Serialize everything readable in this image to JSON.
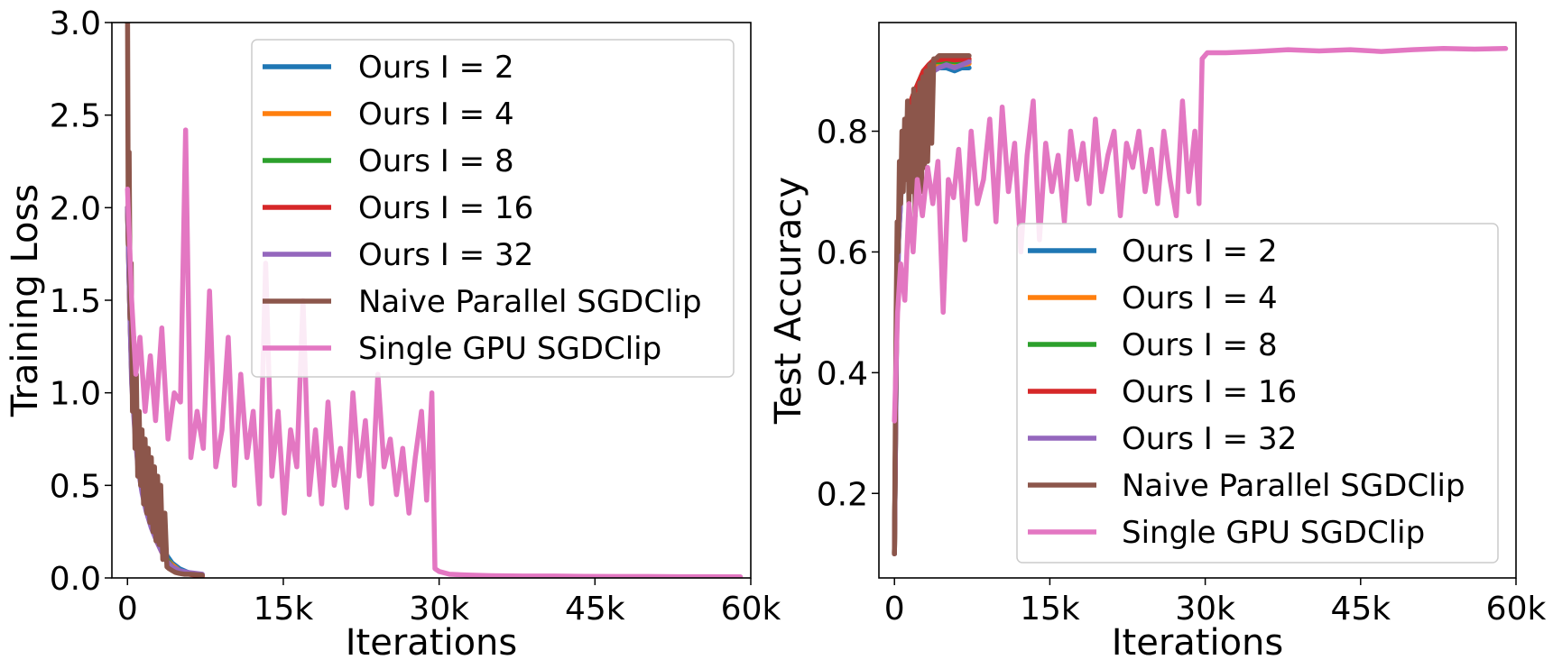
{
  "chart_data": [
    {
      "type": "line",
      "xlabel": "Iterations",
      "ylabel": "Training Loss",
      "xlim": [
        -1500,
        60000
      ],
      "ylim": [
        0,
        3.0
      ],
      "xticks": [
        0,
        15000,
        30000,
        45000,
        60000
      ],
      "xtick_labels": [
        "0",
        "15k",
        "30k",
        "45k",
        "60k"
      ],
      "yticks": [
        0,
        0.5,
        1.0,
        1.5,
        2.0,
        2.5,
        3.0
      ],
      "ytick_labels": [
        "0.0",
        "0.5",
        "1.0",
        "1.5",
        "2.0",
        "2.5",
        "3.0"
      ],
      "legend_position": "top-right",
      "series": [
        {
          "name": "Ours I = 2",
          "color": "#1f77b4",
          "x": [
            0,
            200,
            400,
            700,
            1000,
            1400,
            1800,
            2300,
            2800,
            3300,
            3800,
            4300,
            5000,
            5800,
            6500,
            7200
          ],
          "y": [
            2.0,
            1.6,
            1.2,
            0.9,
            0.7,
            0.55,
            0.45,
            0.35,
            0.25,
            0.18,
            0.12,
            0.08,
            0.05,
            0.03,
            0.02,
            0.015
          ]
        },
        {
          "name": "Ours I = 4",
          "color": "#ff7f0e",
          "x": [
            0,
            200,
            400,
            700,
            1000,
            1400,
            1800,
            2300,
            2800,
            3300,
            3800,
            4300,
            5000,
            5800,
            6500,
            7200
          ],
          "y": [
            2.0,
            1.55,
            1.15,
            0.88,
            0.68,
            0.52,
            0.42,
            0.32,
            0.23,
            0.16,
            0.1,
            0.07,
            0.04,
            0.025,
            0.018,
            0.012
          ]
        },
        {
          "name": "Ours I = 8",
          "color": "#2ca02c",
          "x": [
            0,
            200,
            400,
            700,
            1000,
            1400,
            1800,
            2300,
            2800,
            3300,
            3800,
            4300,
            5000,
            5800,
            6500,
            7200
          ],
          "y": [
            2.0,
            1.5,
            1.1,
            0.85,
            0.65,
            0.5,
            0.4,
            0.3,
            0.22,
            0.15,
            0.1,
            0.06,
            0.04,
            0.025,
            0.018,
            0.012
          ]
        },
        {
          "name": "Ours I = 16",
          "color": "#d62728",
          "x": [
            0,
            200,
            400,
            700,
            1000,
            1400,
            1800,
            2300,
            2800,
            3300,
            3800,
            4300,
            5000,
            5800,
            6500,
            7200
          ],
          "y": [
            2.0,
            1.5,
            1.1,
            0.82,
            0.62,
            0.48,
            0.38,
            0.28,
            0.2,
            0.14,
            0.09,
            0.06,
            0.035,
            0.022,
            0.015,
            0.01
          ]
        },
        {
          "name": "Ours I = 32",
          "color": "#9467bd",
          "x": [
            0,
            200,
            400,
            700,
            1000,
            1400,
            1800,
            2300,
            2800,
            3300,
            3800,
            4300,
            5000,
            5800,
            6500,
            7200
          ],
          "y": [
            2.0,
            1.5,
            1.05,
            0.8,
            0.6,
            0.46,
            0.36,
            0.27,
            0.2,
            0.14,
            0.09,
            0.06,
            0.04,
            0.03,
            0.025,
            0.02
          ]
        },
        {
          "name": "Naive Parallel SGDClip",
          "color": "#8c564b",
          "x": [
            0,
            80,
            160,
            260,
            360,
            480,
            600,
            720,
            850,
            980,
            1120,
            1260,
            1400,
            1550,
            1700,
            1850,
            2000,
            2150,
            2300,
            2450,
            2600,
            2750,
            2900,
            3050,
            3200,
            3400,
            3600,
            3800,
            4000,
            4300,
            4600,
            5000,
            5500,
            6000,
            6500,
            7200
          ],
          "y": [
            3.1,
            1.8,
            2.3,
            1.4,
            1.7,
            0.9,
            1.3,
            0.7,
            1.1,
            0.55,
            0.9,
            0.5,
            0.8,
            0.4,
            0.75,
            0.35,
            0.7,
            0.3,
            0.65,
            0.25,
            0.6,
            0.2,
            0.55,
            0.18,
            0.5,
            0.1,
            0.35,
            0.06,
            0.05,
            0.04,
            0.03,
            0.025,
            0.02,
            0.02,
            0.018,
            0.015
          ]
        },
        {
          "name": "Single GPU SGDClip",
          "color": "#e377c2",
          "x": [
            0,
            400,
            800,
            1200,
            1700,
            2200,
            2700,
            3300,
            3900,
            4500,
            5100,
            5600,
            6100,
            6700,
            7300,
            7900,
            8500,
            9100,
            9700,
            10300,
            10900,
            11500,
            12100,
            12700,
            13300,
            13900,
            14500,
            15100,
            15700,
            16300,
            16900,
            17500,
            18100,
            18700,
            19300,
            19900,
            20500,
            21100,
            21700,
            22300,
            22900,
            23500,
            24100,
            24700,
            25300,
            25900,
            26500,
            27100,
            27700,
            28300,
            28800,
            29300,
            29600,
            30000,
            31000,
            33000,
            35000,
            38000,
            41000,
            44000,
            47000,
            50000,
            53000,
            56000,
            59000
          ],
          "y": [
            2.1,
            1.5,
            1.1,
            1.3,
            0.9,
            1.2,
            0.85,
            1.35,
            0.75,
            1.0,
            0.95,
            2.42,
            0.65,
            0.9,
            0.7,
            1.55,
            0.6,
            0.8,
            1.3,
            0.5,
            1.1,
            0.65,
            0.9,
            0.4,
            1.7,
            0.55,
            0.9,
            0.35,
            0.8,
            0.6,
            1.5,
            0.45,
            0.8,
            0.4,
            0.95,
            0.5,
            0.7,
            0.38,
            1.0,
            0.55,
            0.85,
            0.4,
            1.1,
            0.6,
            0.75,
            0.45,
            0.7,
            0.35,
            0.65,
            0.9,
            0.42,
            1.0,
            0.05,
            0.035,
            0.02,
            0.015,
            0.012,
            0.01,
            0.01,
            0.009,
            0.008,
            0.008,
            0.007,
            0.007,
            0.006
          ]
        }
      ]
    },
    {
      "type": "line",
      "xlabel": "Iterations",
      "ylabel": "Test Accuracy",
      "xlim": [
        -1500,
        60000
      ],
      "ylim": [
        0.06,
        0.98
      ],
      "xticks": [
        0,
        15000,
        30000,
        45000,
        60000
      ],
      "xtick_labels": [
        "0",
        "15k",
        "30k",
        "45k",
        "60k"
      ],
      "yticks": [
        0.2,
        0.4,
        0.6,
        0.8
      ],
      "ytick_labels": [
        "0.2",
        "0.4",
        "0.6",
        "0.8"
      ],
      "legend_position": "lower-right",
      "series": [
        {
          "name": "Ours I = 2",
          "color": "#1f77b4",
          "x": [
            0,
            200,
            400,
            700,
            1000,
            1400,
            1800,
            2300,
            2800,
            3300,
            3800,
            4300,
            5000,
            5800,
            6500,
            7200
          ],
          "y": [
            0.1,
            0.45,
            0.62,
            0.72,
            0.78,
            0.82,
            0.84,
            0.86,
            0.88,
            0.89,
            0.9,
            0.905,
            0.905,
            0.9,
            0.905,
            0.905
          ]
        },
        {
          "name": "Ours I = 4",
          "color": "#ff7f0e",
          "x": [
            0,
            200,
            400,
            700,
            1000,
            1400,
            1800,
            2300,
            2800,
            3300,
            3800,
            4300,
            5000,
            5800,
            6500,
            7200
          ],
          "y": [
            0.1,
            0.46,
            0.63,
            0.73,
            0.79,
            0.83,
            0.85,
            0.87,
            0.89,
            0.9,
            0.91,
            0.91,
            0.912,
            0.91,
            0.91,
            0.912
          ]
        },
        {
          "name": "Ours I = 8",
          "color": "#2ca02c",
          "x": [
            0,
            200,
            400,
            700,
            1000,
            1400,
            1800,
            2300,
            2800,
            3300,
            3800,
            4300,
            5000,
            5800,
            6500,
            7200
          ],
          "y": [
            0.1,
            0.47,
            0.64,
            0.74,
            0.8,
            0.84,
            0.86,
            0.88,
            0.9,
            0.905,
            0.915,
            0.915,
            0.917,
            0.915,
            0.916,
            0.917
          ]
        },
        {
          "name": "Ours I = 16",
          "color": "#d62728",
          "x": [
            0,
            200,
            400,
            700,
            1000,
            1400,
            1800,
            2300,
            2800,
            3300,
            3800,
            4300,
            5000,
            5800,
            6500,
            7200
          ],
          "y": [
            0.1,
            0.48,
            0.65,
            0.75,
            0.8,
            0.84,
            0.86,
            0.88,
            0.9,
            0.91,
            0.918,
            0.918,
            0.92,
            0.918,
            0.919,
            0.92
          ]
        },
        {
          "name": "Ours I = 32",
          "color": "#9467bd",
          "x": [
            0,
            200,
            400,
            700,
            1000,
            1400,
            1800,
            2300,
            2800,
            3300,
            3800,
            4300,
            5000,
            5800,
            6500,
            7200
          ],
          "y": [
            0.1,
            0.46,
            0.62,
            0.72,
            0.77,
            0.8,
            0.82,
            0.84,
            0.86,
            0.88,
            0.9,
            0.905,
            0.91,
            0.905,
            0.91,
            0.915
          ]
        },
        {
          "name": "Naive Parallel SGDClip",
          "color": "#8c564b",
          "x": [
            0,
            80,
            160,
            260,
            360,
            480,
            600,
            720,
            850,
            980,
            1120,
            1260,
            1400,
            1550,
            1700,
            1850,
            2000,
            2150,
            2300,
            2450,
            2600,
            2750,
            2900,
            3050,
            3200,
            3400,
            3600,
            3800,
            4000,
            4300,
            4600,
            5000,
            5500,
            6000,
            6500,
            7200
          ],
          "y": [
            0.1,
            0.3,
            0.5,
            0.65,
            0.6,
            0.75,
            0.68,
            0.8,
            0.7,
            0.82,
            0.72,
            0.85,
            0.68,
            0.84,
            0.7,
            0.87,
            0.66,
            0.86,
            0.72,
            0.88,
            0.7,
            0.89,
            0.74,
            0.9,
            0.75,
            0.91,
            0.78,
            0.92,
            0.92,
            0.925,
            0.925,
            0.925,
            0.925,
            0.925,
            0.925,
            0.925
          ]
        },
        {
          "name": "Single GPU SGDClip",
          "color": "#e377c2",
          "x": [
            0,
            300,
            600,
            1000,
            1400,
            1800,
            2200,
            2700,
            3200,
            3700,
            4200,
            4700,
            5200,
            5700,
            6200,
            6800,
            7400,
            8000,
            8600,
            9200,
            9800,
            10400,
            11000,
            11600,
            12200,
            12800,
            13400,
            14000,
            14600,
            15200,
            15800,
            16400,
            17000,
            17600,
            18200,
            18800,
            19400,
            20000,
            20600,
            21200,
            21800,
            22400,
            23000,
            23600,
            24200,
            24800,
            25400,
            26000,
            26600,
            27200,
            27800,
            28400,
            29000,
            29400,
            29700,
            30200,
            32000,
            35000,
            38000,
            41000,
            44000,
            47000,
            50000,
            53000,
            56000,
            59000
          ],
          "y": [
            0.32,
            0.5,
            0.58,
            0.52,
            0.68,
            0.6,
            0.72,
            0.66,
            0.74,
            0.68,
            0.75,
            0.5,
            0.72,
            0.69,
            0.77,
            0.62,
            0.8,
            0.68,
            0.72,
            0.82,
            0.65,
            0.84,
            0.7,
            0.78,
            0.6,
            0.76,
            0.85,
            0.62,
            0.78,
            0.7,
            0.76,
            0.65,
            0.8,
            0.72,
            0.78,
            0.68,
            0.82,
            0.7,
            0.76,
            0.8,
            0.66,
            0.78,
            0.74,
            0.8,
            0.7,
            0.77,
            0.68,
            0.8,
            0.72,
            0.66,
            0.85,
            0.7,
            0.8,
            0.68,
            0.92,
            0.93,
            0.93,
            0.932,
            0.935,
            0.933,
            0.935,
            0.932,
            0.935,
            0.937,
            0.936,
            0.937
          ]
        }
      ]
    }
  ]
}
